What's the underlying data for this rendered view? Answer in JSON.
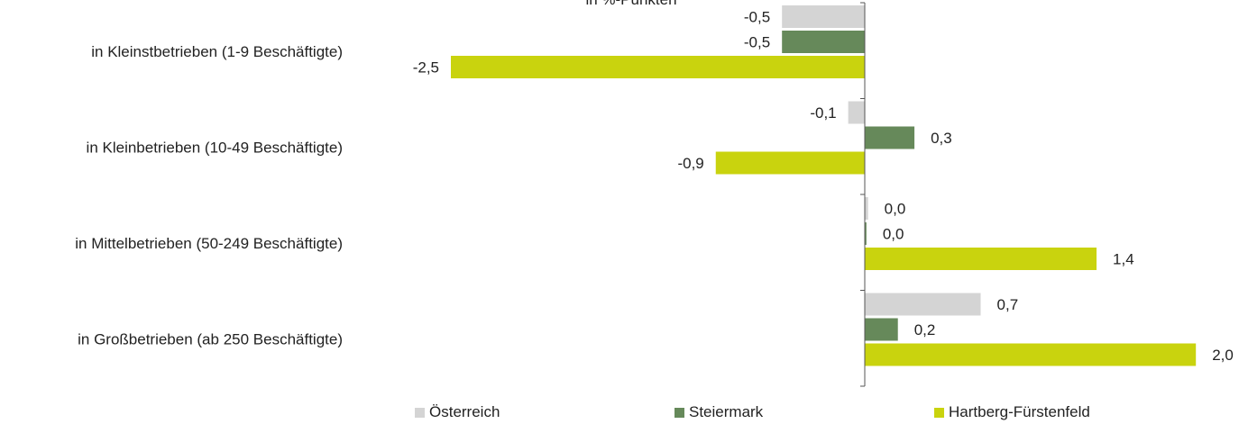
{
  "chart_data": {
    "type": "bar",
    "orientation": "horizontal",
    "title": "in %-Punkten",
    "categories": [
      "in Kleinstbetrieben (1-9 Beschäftigte)",
      "in Kleinbetrieben (10-49 Beschäftigte)",
      "in Mittelbetrieben (50-249 Beschäftigte)",
      "in Großbetrieben (ab 250 Beschäftigte)"
    ],
    "series": [
      {
        "name": "Österreich",
        "color": "#d4d4d4",
        "values": [
          -0.5,
          -0.1,
          0.02,
          0.7
        ],
        "labels": [
          "-0,5",
          "-0,1",
          "0,0",
          "0,7"
        ]
      },
      {
        "name": "Steiermark",
        "color": "#66895a",
        "values": [
          -0.5,
          0.3,
          0.01,
          0.2
        ],
        "labels": [
          "-0,5",
          "0,3",
          "0,0",
          "0,2"
        ]
      },
      {
        "name": "Hartberg-Fürstenfeld",
        "color": "#c9d30e",
        "values": [
          -2.5,
          -0.9,
          1.4,
          2.0
        ],
        "labels": [
          "-2,5",
          "-0,9",
          "1,4",
          "2,0"
        ]
      }
    ],
    "legend_position": "bottom",
    "grid": false,
    "axis_color": "#555555"
  }
}
